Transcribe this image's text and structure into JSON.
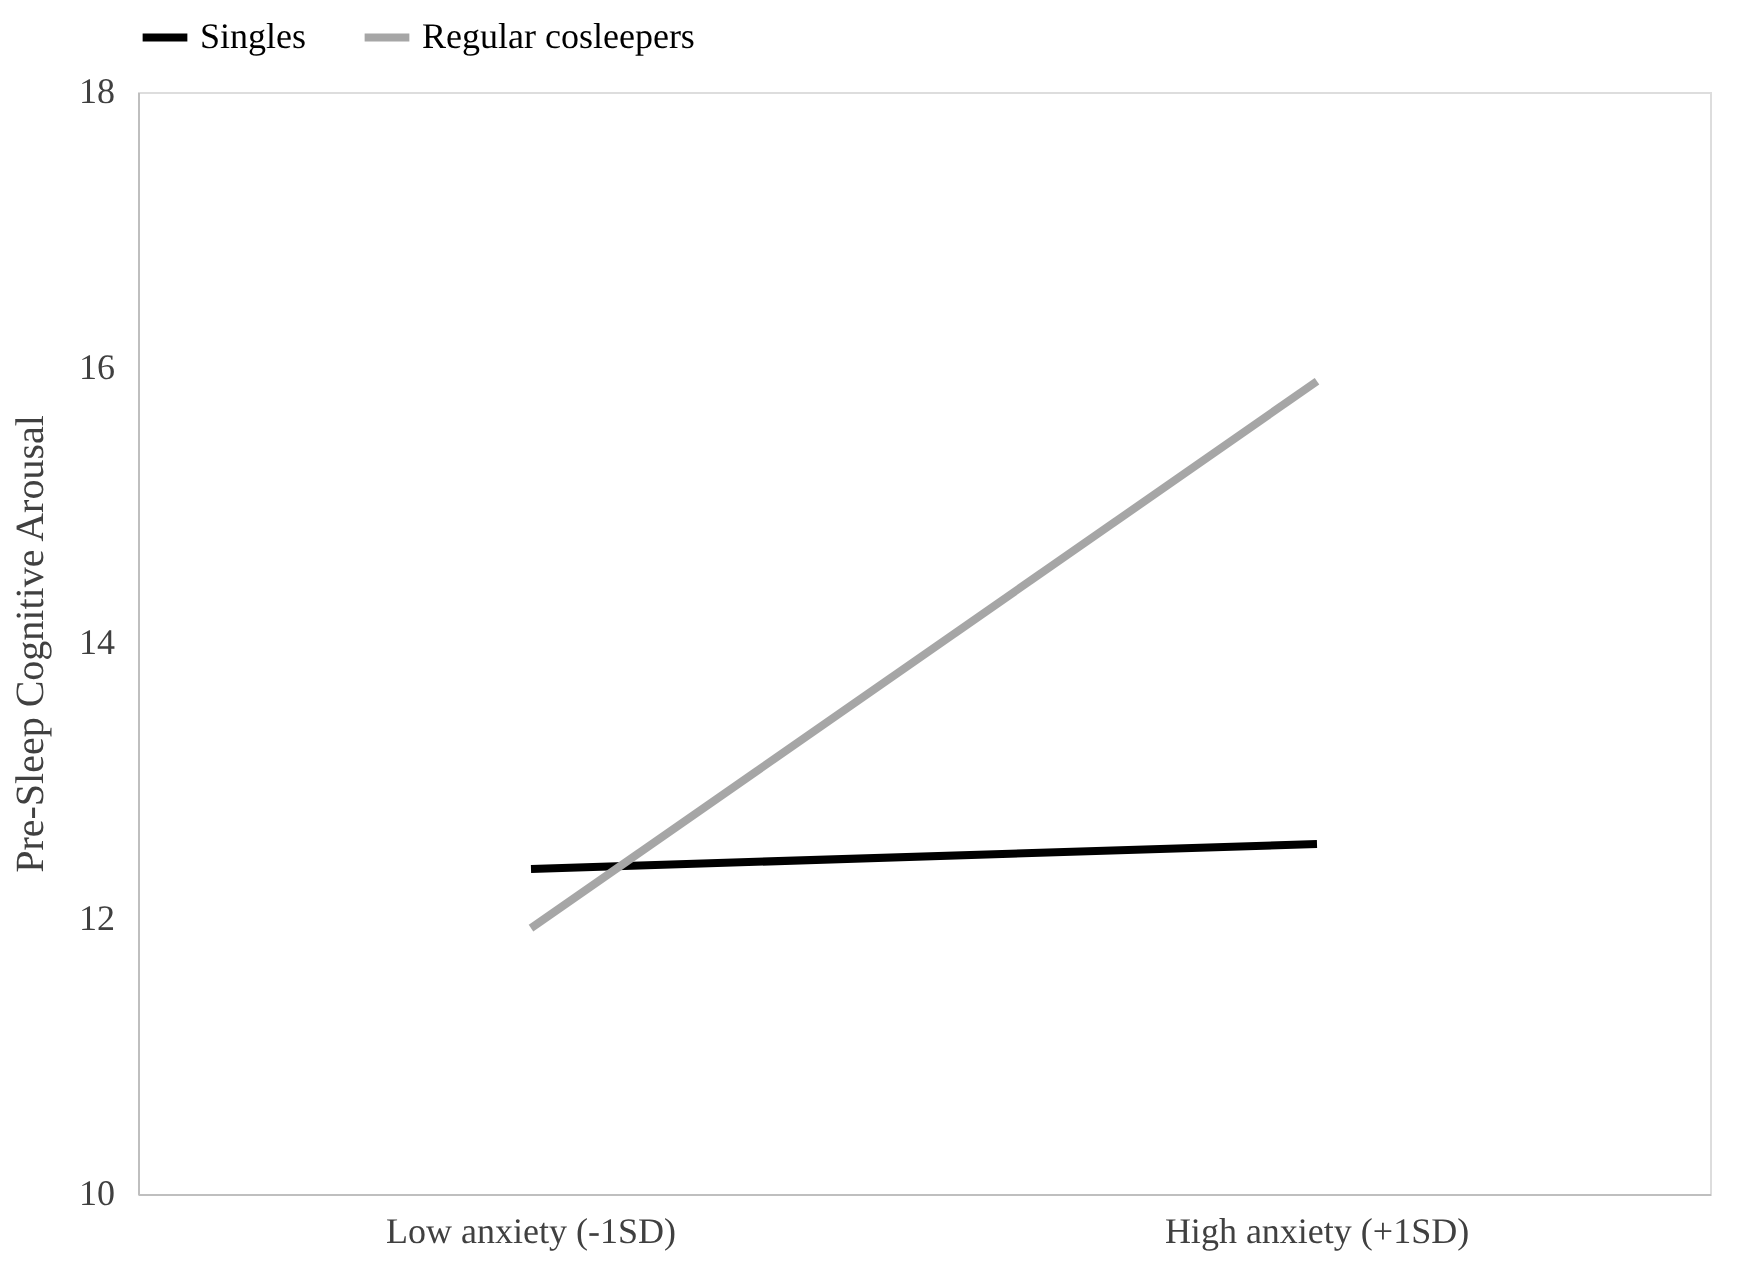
{
  "chart_data": {
    "type": "line",
    "ylabel": "Pre-Sleep Cognitive Arousal",
    "categories": [
      "Low anxiety (-1SD)",
      "High anxiety (+1SD)"
    ],
    "series": [
      {
        "name": "Singles",
        "color": "#000000",
        "values": [
          12.36,
          12.54
        ]
      },
      {
        "name": "Regular cosleepers",
        "color": "#a6a6a6",
        "values": [
          11.93,
          15.9
        ]
      }
    ],
    "ylim": [
      10,
      18
    ],
    "yticks": [
      10,
      12,
      14,
      16,
      18
    ],
    "grid": false,
    "legend": "top",
    "marker": "none",
    "line_style": "solid"
  }
}
